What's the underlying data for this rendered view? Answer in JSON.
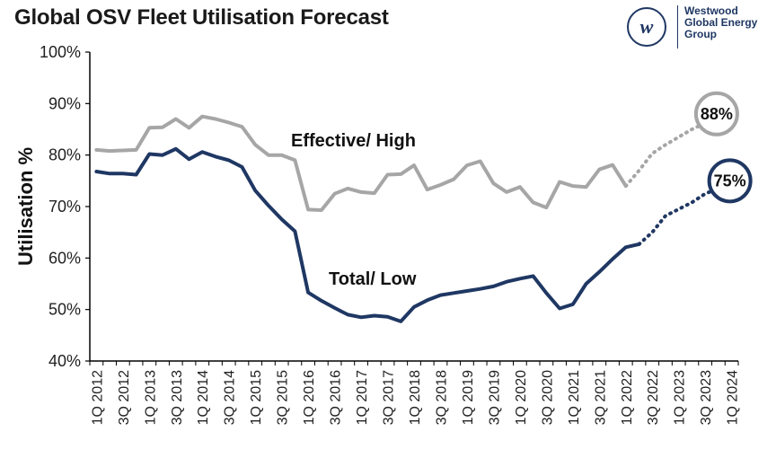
{
  "title": "Global OSV Fleet Utilisation Forecast",
  "logo": {
    "mark": "w",
    "lines": [
      "Westwood",
      "Global Energy",
      "Group"
    ],
    "icon": "westwood-logo-icon"
  },
  "colors": {
    "high": "#a6a6a6",
    "low": "#1f3763",
    "axis": "#000000"
  },
  "chart_data": {
    "type": "line",
    "title": "Global OSV Fleet Utilisation Forecast",
    "xlabel": "",
    "ylabel": "Utilisation %",
    "ylim": [
      40,
      100
    ],
    "yticks": [
      "40%",
      "50%",
      "60%",
      "70%",
      "80%",
      "90%",
      "100%"
    ],
    "ytick_values": [
      40,
      50,
      60,
      70,
      80,
      90,
      100
    ],
    "x_quarters": [
      "1Q 2012",
      "2Q 2012",
      "3Q 2012",
      "4Q 2012",
      "1Q 2013",
      "2Q 2013",
      "3Q 2013",
      "4Q 2013",
      "1Q 2014",
      "2Q 2014",
      "3Q 2014",
      "4Q 2014",
      "1Q 2015",
      "2Q 2015",
      "3Q 2015",
      "4Q 2015",
      "1Q 2016",
      "2Q 2016",
      "3Q 2016",
      "4Q 2016",
      "1Q 2017",
      "2Q 2017",
      "3Q 2017",
      "4Q 2017",
      "1Q 2018",
      "2Q 2018",
      "3Q 2018",
      "4Q 2018",
      "1Q 2019",
      "2Q 2019",
      "3Q 2019",
      "4Q 2019",
      "1Q 2020",
      "2Q 2020",
      "3Q 2020",
      "4Q 2020",
      "1Q 2021",
      "2Q 2021",
      "3Q 2021",
      "4Q 2021",
      "1Q 2022",
      "2Q 2022",
      "3Q 2022",
      "4Q 2022",
      "1Q 2023",
      "2Q 2023",
      "3Q 2023",
      "4Q 2023",
      "1Q 2024"
    ],
    "xtick_labels": [
      "1Q 2012",
      "3Q 2012",
      "1Q 2013",
      "3Q 2013",
      "1Q 2014",
      "3Q 2014",
      "1Q 2015",
      "3Q 2015",
      "1Q 2016",
      "3Q 2016",
      "1Q 2017",
      "3Q 2017",
      "1Q 2018",
      "3Q 2018",
      "1Q 2019",
      "3Q 2019",
      "1Q 2020",
      "3Q 2020",
      "1Q 2021",
      "3Q 2021",
      "1Q 2022",
      "3Q 2022",
      "1Q 2023",
      "3Q 2023",
      "1Q 2024"
    ],
    "series": [
      {
        "name": "Effective/ High",
        "color": "#a6a6a6",
        "values": [
          81,
          80.8,
          80.9,
          81,
          85.3,
          85.4,
          87,
          85.3,
          87.5,
          87,
          86.3,
          85.5,
          82,
          80,
          80,
          79,
          69.4,
          69.3,
          72.5,
          73.5,
          72.8,
          72.6,
          76.2,
          76.3,
          78,
          73.3,
          74.2,
          75.3,
          78,
          78.8,
          74.5,
          72.8,
          73.8,
          70.8,
          69.8,
          74.8,
          74,
          73.8,
          77.2,
          78.1,
          74
        ],
        "forecast": [
          74,
          77,
          80.3,
          82,
          83.5,
          85,
          86.2,
          88
        ],
        "end_label": "88%"
      },
      {
        "name": "Total/ Low",
        "color": "#1f3763",
        "values": [
          76.8,
          76.4,
          76.4,
          76.2,
          80.2,
          80,
          81.2,
          79.2,
          80.6,
          79.7,
          79,
          77.7,
          73.1,
          70.2,
          67.5,
          65.2,
          53.3,
          51.7,
          50.3,
          49,
          48.5,
          48.8,
          48.6,
          47.7,
          50.5,
          51.8,
          52.8,
          53.2,
          53.6,
          54,
          54.5,
          55.4,
          56,
          56.5,
          53.2,
          50.2,
          51,
          55,
          57.3,
          59.8,
          62.1,
          62.7
        ],
        "forecast": [
          62.7,
          65,
          68.2,
          69.5,
          70.8,
          72.5,
          73.5,
          75
        ],
        "end_label": "75%"
      }
    ],
    "annotations": [
      {
        "text": "Effective/ High",
        "series": 0
      },
      {
        "text": "Total/ Low",
        "series": 1
      }
    ],
    "grid": false,
    "legend": "inline labels"
  }
}
